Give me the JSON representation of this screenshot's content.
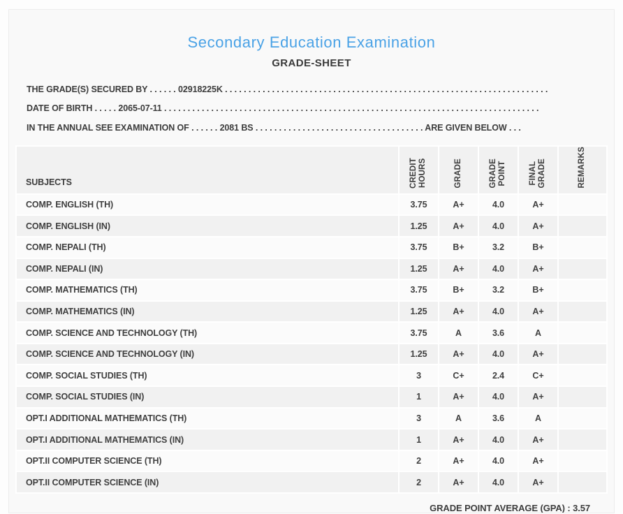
{
  "colors": {
    "accent": "#4aa2e6",
    "text": "#3c3c3c"
  },
  "header": {
    "title": "Secondary Education Examination",
    "subtitle": "GRADE-SHEET"
  },
  "info": {
    "lines": [
      {
        "label": "THE GRADE(S) SECURED BY",
        "sep": " . . . . . . ",
        "value": "02918225K",
        "mid": " . . . . . . . . . . . . . . . . . . . . . . . . . . . . . . . . . . . . . . . . . . . . . . . . . . . . . . . . . . . . . . . . . . . . . . . . . . . . . . . .",
        "suffix": "",
        "tail": ""
      },
      {
        "label": "DATE OF BIRTH",
        "sep": " . . . . . ",
        "value": "2065-07-11",
        "mid": " . . . . . . . . . . . . . . . . . . . . . . . . . . . . . . . . . . . . . . . . . . . . . . . . . . . . . . . . . . . . . . . . . . . . . . . . . . . . . . . .",
        "suffix": "",
        "tail": ""
      },
      {
        "label": "IN THE ANNUAL SEE EXAMINATION OF",
        "sep": " . . . . . . ",
        "value": "2081 BS",
        "mid": " . . . . . . . . . . . . . . . . . . . . . . . . . . . . . . . . . . . . ",
        "suffix": "ARE GIVEN BELOW",
        "tail": " . . ."
      }
    ]
  },
  "table": {
    "subjects_header": "SUBJECTS",
    "columns": [
      "CREDIT\nHOURS",
      "GRADE",
      "GRADE\nPOINT",
      "FINAL\nGRADE",
      "REMARKS"
    ],
    "rows": [
      {
        "subject": "COMP. ENGLISH (TH)",
        "credit_hours": "3.75",
        "grade": "A+",
        "grade_point": "4.0",
        "final_grade": "A+",
        "remarks": ""
      },
      {
        "subject": "COMP. ENGLISH (IN)",
        "credit_hours": "1.25",
        "grade": "A+",
        "grade_point": "4.0",
        "final_grade": "A+",
        "remarks": ""
      },
      {
        "subject": "COMP. NEPALI (TH)",
        "credit_hours": "3.75",
        "grade": "B+",
        "grade_point": "3.2",
        "final_grade": "B+",
        "remarks": ""
      },
      {
        "subject": "COMP. NEPALI (IN)",
        "credit_hours": "1.25",
        "grade": "A+",
        "grade_point": "4.0",
        "final_grade": "A+",
        "remarks": ""
      },
      {
        "subject": "COMP. MATHEMATICS (TH)",
        "credit_hours": "3.75",
        "grade": "B+",
        "grade_point": "3.2",
        "final_grade": "B+",
        "remarks": ""
      },
      {
        "subject": "COMP. MATHEMATICS (IN)",
        "credit_hours": "1.25",
        "grade": "A+",
        "grade_point": "4.0",
        "final_grade": "A+",
        "remarks": ""
      },
      {
        "subject": "COMP. SCIENCE AND TECHNOLOGY (TH)",
        "credit_hours": "3.75",
        "grade": "A",
        "grade_point": "3.6",
        "final_grade": "A",
        "remarks": ""
      },
      {
        "subject": "COMP. SCIENCE AND TECHNOLOGY (IN)",
        "credit_hours": "1.25",
        "grade": "A+",
        "grade_point": "4.0",
        "final_grade": "A+",
        "remarks": ""
      },
      {
        "subject": "COMP. SOCIAL STUDIES (TH)",
        "credit_hours": "3",
        "grade": "C+",
        "grade_point": "2.4",
        "final_grade": "C+",
        "remarks": ""
      },
      {
        "subject": "COMP. SOCIAL STUDIES (IN)",
        "credit_hours": "1",
        "grade": "A+",
        "grade_point": "4.0",
        "final_grade": "A+",
        "remarks": ""
      },
      {
        "subject": "OPT.I ADDITIONAL MATHEMATICS (TH)",
        "credit_hours": "3",
        "grade": "A",
        "grade_point": "3.6",
        "final_grade": "A",
        "remarks": ""
      },
      {
        "subject": "OPT.I ADDITIONAL MATHEMATICS (IN)",
        "credit_hours": "1",
        "grade": "A+",
        "grade_point": "4.0",
        "final_grade": "A+",
        "remarks": ""
      },
      {
        "subject": "OPT.II COMPUTER SCIENCE (TH)",
        "credit_hours": "2",
        "grade": "A+",
        "grade_point": "4.0",
        "final_grade": "A+",
        "remarks": ""
      },
      {
        "subject": "OPT.II COMPUTER SCIENCE (IN)",
        "credit_hours": "2",
        "grade": "A+",
        "grade_point": "4.0",
        "final_grade": "A+",
        "remarks": ""
      }
    ],
    "gpa_label": "GRADE POINT AVERAGE (GPA) : 3.57"
  }
}
